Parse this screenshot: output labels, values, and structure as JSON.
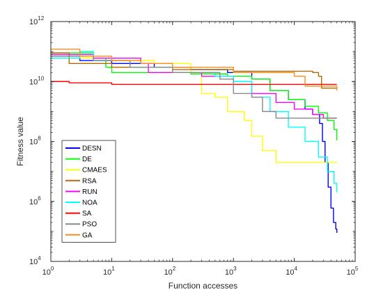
{
  "chart_data": {
    "type": "line",
    "title": "",
    "xlabel": "Function accesses",
    "ylabel": "Fitness value",
    "xscale": "log",
    "yscale": "log",
    "xlim": [
      1,
      100000
    ],
    "ylim": [
      10000,
      1000000000000
    ],
    "x_ticks": [
      {
        "value": 1,
        "base": "10",
        "exp": "0"
      },
      {
        "value": 10,
        "base": "10",
        "exp": "1"
      },
      {
        "value": 100,
        "base": "10",
        "exp": "2"
      },
      {
        "value": 1000,
        "base": "10",
        "exp": "3"
      },
      {
        "value": 10000,
        "base": "10",
        "exp": "4"
      },
      {
        "value": 100000,
        "base": "10",
        "exp": "5"
      }
    ],
    "y_ticks": [
      {
        "value": 10000,
        "base": "10",
        "exp": "4"
      },
      {
        "value": 1000000,
        "base": "10",
        "exp": "6"
      },
      {
        "value": 100000000,
        "base": "10",
        "exp": "8"
      },
      {
        "value": 10000000000,
        "base": "10",
        "exp": "10"
      },
      {
        "value": 1000000000000,
        "base": "10",
        "exp": "12"
      }
    ],
    "grid": false,
    "legend_position": "lower-left",
    "series": [
      {
        "name": "DESN",
        "color": "#0000ff",
        "points": [
          [
            1,
            70000000000.0
          ],
          [
            3,
            50000000000.0
          ],
          [
            10,
            40000000000.0
          ],
          [
            50,
            30000000000.0
          ],
          [
            200,
            25000000000.0
          ],
          [
            800,
            20000000000.0
          ],
          [
            2000,
            12000000000.0
          ],
          [
            4000,
            5000000000.0
          ],
          [
            8000,
            2500000000.0
          ],
          [
            15000,
            1200000000.0
          ],
          [
            20000,
            800000000.0
          ],
          [
            26000,
            400000000.0
          ],
          [
            29000,
            100000000.0
          ],
          [
            32000,
            20000000.0
          ],
          [
            36000,
            3000000.0
          ],
          [
            40000,
            600000.0
          ],
          [
            44000,
            200000.0
          ],
          [
            48000,
            120000.0
          ],
          [
            50000,
            90000.0
          ]
        ]
      },
      {
        "name": "DE",
        "color": "#00ff00",
        "points": [
          [
            1,
            90000000000.0
          ],
          [
            5,
            60000000000.0
          ],
          [
            8,
            30000000000.0
          ],
          [
            10,
            20000000000.0
          ],
          [
            50,
            20000000000.0
          ],
          [
            200,
            18000000000.0
          ],
          [
            800,
            15000000000.0
          ],
          [
            2000,
            12000000000.0
          ],
          [
            4000,
            5000000000.0
          ],
          [
            8000,
            2500000000.0
          ],
          [
            15000,
            1500000000.0
          ],
          [
            25000,
            900000000.0
          ],
          [
            35000,
            500000000.0
          ],
          [
            45000,
            250000000.0
          ],
          [
            50000,
            110000000.0
          ]
        ]
      },
      {
        "name": "CMAES",
        "color": "#ffff00",
        "points": [
          [
            1,
            80000000000.0
          ],
          [
            3,
            60000000000.0
          ],
          [
            10,
            50000000000.0
          ],
          [
            50,
            40000000000.0
          ],
          [
            200,
            20000000000.0
          ],
          [
            300,
            4000000000.0
          ],
          [
            500,
            3000000000.0
          ],
          [
            800,
            1000000000.0
          ],
          [
            1500,
            500000000.0
          ],
          [
            2000,
            150000000.0
          ],
          [
            3000,
            50000000.0
          ],
          [
            5000,
            20000000.0
          ],
          [
            8000,
            20000000.0
          ],
          [
            50000,
            20000000.0
          ]
        ]
      },
      {
        "name": "RSA",
        "color": "#b06a00",
        "points": [
          [
            1,
            90000000000.0
          ],
          [
            2,
            40000000000.0
          ],
          [
            10,
            30000000000.0
          ],
          [
            100,
            25000000000.0
          ],
          [
            1000,
            22000000000.0
          ],
          [
            10000,
            22000000000.0
          ],
          [
            20000,
            20000000000.0
          ],
          [
            25000,
            15000000000.0
          ],
          [
            28000,
            6000000000.0
          ],
          [
            50000,
            6000000000.0
          ]
        ]
      },
      {
        "name": "RUN",
        "color": "#ff00ff",
        "points": [
          [
            1,
            80000000000.0
          ],
          [
            5,
            60000000000.0
          ],
          [
            30,
            40000000000.0
          ],
          [
            40,
            20000000000.0
          ],
          [
            300,
            15000000000.0
          ],
          [
            1000,
            10000000000.0
          ],
          [
            2000,
            4000000000.0
          ],
          [
            5000,
            2000000000.0
          ],
          [
            10000,
            1200000000.0
          ],
          [
            20000,
            800000000.0
          ],
          [
            30000,
            600000000.0
          ],
          [
            50000,
            600000000.0
          ]
        ]
      },
      {
        "name": "NOA",
        "color": "#00ffff",
        "points": [
          [
            1,
            60000000000.0
          ],
          [
            3,
            100000000000.0
          ],
          [
            5,
            50000000000.0
          ],
          [
            20,
            30000000000.0
          ],
          [
            100,
            20000000000.0
          ],
          [
            500,
            15000000000.0
          ],
          [
            1000,
            10000000000.0
          ],
          [
            2000,
            3000000000.0
          ],
          [
            4000,
            1000000000.0
          ],
          [
            8000,
            300000000.0
          ],
          [
            15000,
            100000000.0
          ],
          [
            25000,
            30000000.0
          ],
          [
            35000,
            10000000.0
          ],
          [
            45000,
            4000000.0
          ],
          [
            50000,
            2000000.0
          ]
        ]
      },
      {
        "name": "SA",
        "color": "#ff0000",
        "points": [
          [
            1,
            10000000000.0
          ],
          [
            2,
            9000000000.0
          ],
          [
            10,
            8000000000.0
          ],
          [
            50,
            8000000000.0
          ],
          [
            1000,
            8000000000.0
          ],
          [
            10000,
            8000000000.0
          ],
          [
            50000,
            8000000000.0
          ]
        ]
      },
      {
        "name": "PSO",
        "color": "#888888",
        "points": [
          [
            1,
            70000000000.0
          ],
          [
            5,
            50000000000.0
          ],
          [
            20,
            30000000000.0
          ],
          [
            100,
            20000000000.0
          ],
          [
            600,
            12000000000.0
          ],
          [
            1000,
            4000000000.0
          ],
          [
            2000,
            3000000000.0
          ],
          [
            3000,
            1000000000.0
          ],
          [
            5000,
            600000000.0
          ],
          [
            10000,
            600000000.0
          ],
          [
            50000,
            600000000.0
          ]
        ]
      },
      {
        "name": "GA",
        "color": "#ff8c1a",
        "points": [
          [
            1,
            120000000000.0
          ],
          [
            3,
            70000000000.0
          ],
          [
            10,
            50000000000.0
          ],
          [
            30,
            40000000000.0
          ],
          [
            100,
            30000000000.0
          ],
          [
            1000,
            20000000000.0
          ],
          [
            10000,
            15000000000.0
          ],
          [
            15000,
            7000000000.0
          ],
          [
            40000,
            7000000000.0
          ],
          [
            50000,
            5000000000.0
          ]
        ]
      }
    ]
  }
}
